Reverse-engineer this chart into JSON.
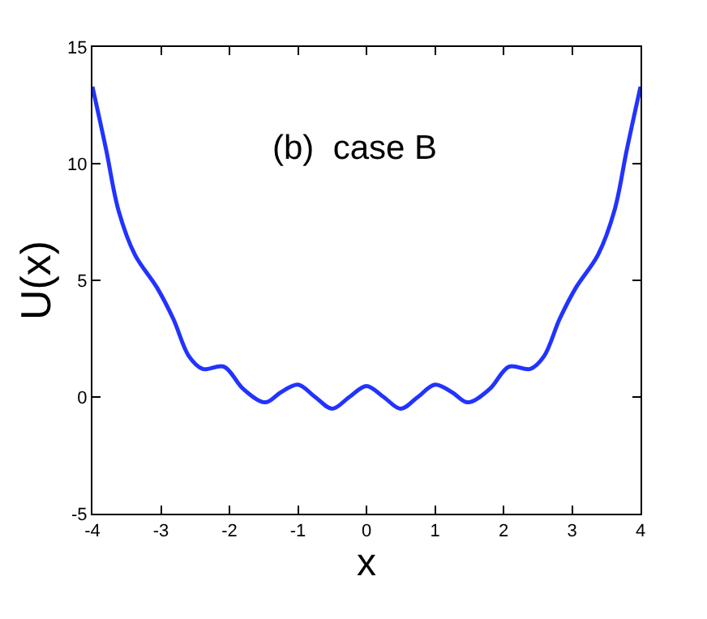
{
  "chart_data": {
    "type": "line",
    "xlabel": "x",
    "ylabel": "U(x)",
    "annotations": [
      "(b)  case B"
    ],
    "x": [
      -4,
      -3.8,
      -3.62,
      -3.38,
      -3.06,
      -2.82,
      -2.59,
      -2.39,
      -2.08,
      -1.8,
      -1.48,
      -1.25,
      -1.0,
      -0.75,
      -0.5,
      -0.25,
      0,
      0.25,
      0.5,
      0.75,
      1.0,
      1.25,
      1.48,
      1.8,
      2.08,
      2.39,
      2.59,
      2.82,
      3.06,
      3.38,
      3.62,
      3.8,
      4
    ],
    "series": [
      {
        "color": "#2233ff",
        "values": [
          13.3,
          10.6,
          8.0,
          6.1,
          4.7,
          3.35,
          1.74,
          1.2,
          1.3,
          0.35,
          -0.23,
          0.2,
          0.53,
          0.0,
          -0.5,
          0.0,
          0.47,
          0.0,
          -0.5,
          0.0,
          0.53,
          0.2,
          -0.23,
          0.35,
          1.3,
          1.2,
          1.74,
          3.35,
          4.7,
          6.1,
          8.0,
          10.6,
          13.3
        ]
      }
    ],
    "xlim": [
      -4,
      4
    ],
    "xticks": [
      -4,
      -3,
      -2,
      -1,
      0,
      1,
      2,
      3,
      4
    ],
    "ylim": [
      -5,
      15
    ],
    "yticks": [
      -5,
      0,
      5,
      10,
      15
    ],
    "marker": "none",
    "line_style": "solid"
  }
}
